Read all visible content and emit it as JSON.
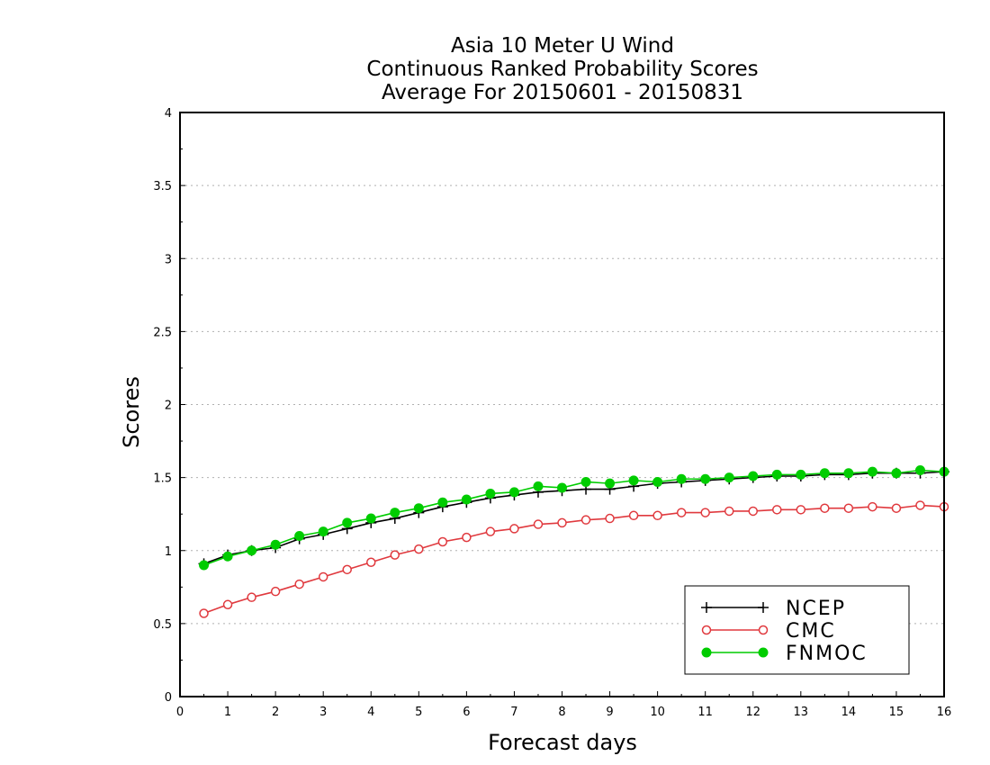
{
  "chart_data": {
    "type": "line",
    "title_lines": [
      "Asia 10 Meter U Wind",
      "Continuous Ranked Probability Scores",
      "Average For 20150601 - 20150831"
    ],
    "xlabel": "Forecast days",
    "ylabel": "Scores",
    "xlim": [
      0,
      16
    ],
    "ylim": [
      0,
      4
    ],
    "x_ticks": [
      "0",
      "1",
      "2",
      "3",
      "4",
      "5",
      "6",
      "7",
      "8",
      "9",
      "10",
      "11",
      "12",
      "13",
      "14",
      "15",
      "16"
    ],
    "y_ticks": [
      "0",
      "0.5",
      "1",
      "1.5",
      "2",
      "2.5",
      "3",
      "3.5",
      "4"
    ],
    "grid": "horizontal dotted",
    "legend_position": "bottom-right",
    "x": [
      0.5,
      1,
      1.5,
      2,
      2.5,
      3,
      3.5,
      4,
      4.5,
      5,
      5.5,
      6,
      6.5,
      7,
      7.5,
      8,
      8.5,
      9,
      9.5,
      10,
      10.5,
      11,
      11.5,
      12,
      12.5,
      13,
      13.5,
      14,
      14.5,
      15,
      15.5,
      16
    ],
    "series": [
      {
        "name": "NCEP",
        "color": "#000000",
        "marker": "plus",
        "values": [
          0.91,
          0.97,
          1.0,
          1.02,
          1.08,
          1.11,
          1.15,
          1.19,
          1.22,
          1.26,
          1.3,
          1.33,
          1.36,
          1.38,
          1.4,
          1.41,
          1.42,
          1.42,
          1.44,
          1.46,
          1.47,
          1.48,
          1.49,
          1.5,
          1.51,
          1.51,
          1.52,
          1.52,
          1.53,
          1.53,
          1.53,
          1.54
        ]
      },
      {
        "name": "CMC",
        "color": "#e0393e",
        "marker": "open-circle",
        "values": [
          0.57,
          0.63,
          0.68,
          0.72,
          0.77,
          0.82,
          0.87,
          0.92,
          0.97,
          1.01,
          1.06,
          1.09,
          1.13,
          1.15,
          1.18,
          1.19,
          1.21,
          1.22,
          1.24,
          1.24,
          1.26,
          1.26,
          1.27,
          1.27,
          1.28,
          1.28,
          1.29,
          1.29,
          1.3,
          1.29,
          1.31,
          1.3
        ]
      },
      {
        "name": "FNMOC",
        "color": "#00cc00",
        "marker": "filled-circle",
        "values": [
          0.9,
          0.96,
          1.0,
          1.04,
          1.1,
          1.13,
          1.19,
          1.22,
          1.26,
          1.29,
          1.33,
          1.35,
          1.39,
          1.4,
          1.44,
          1.43,
          1.47,
          1.46,
          1.48,
          1.47,
          1.49,
          1.49,
          1.5,
          1.51,
          1.52,
          1.52,
          1.53,
          1.53,
          1.54,
          1.53,
          1.55,
          1.54
        ]
      }
    ]
  }
}
